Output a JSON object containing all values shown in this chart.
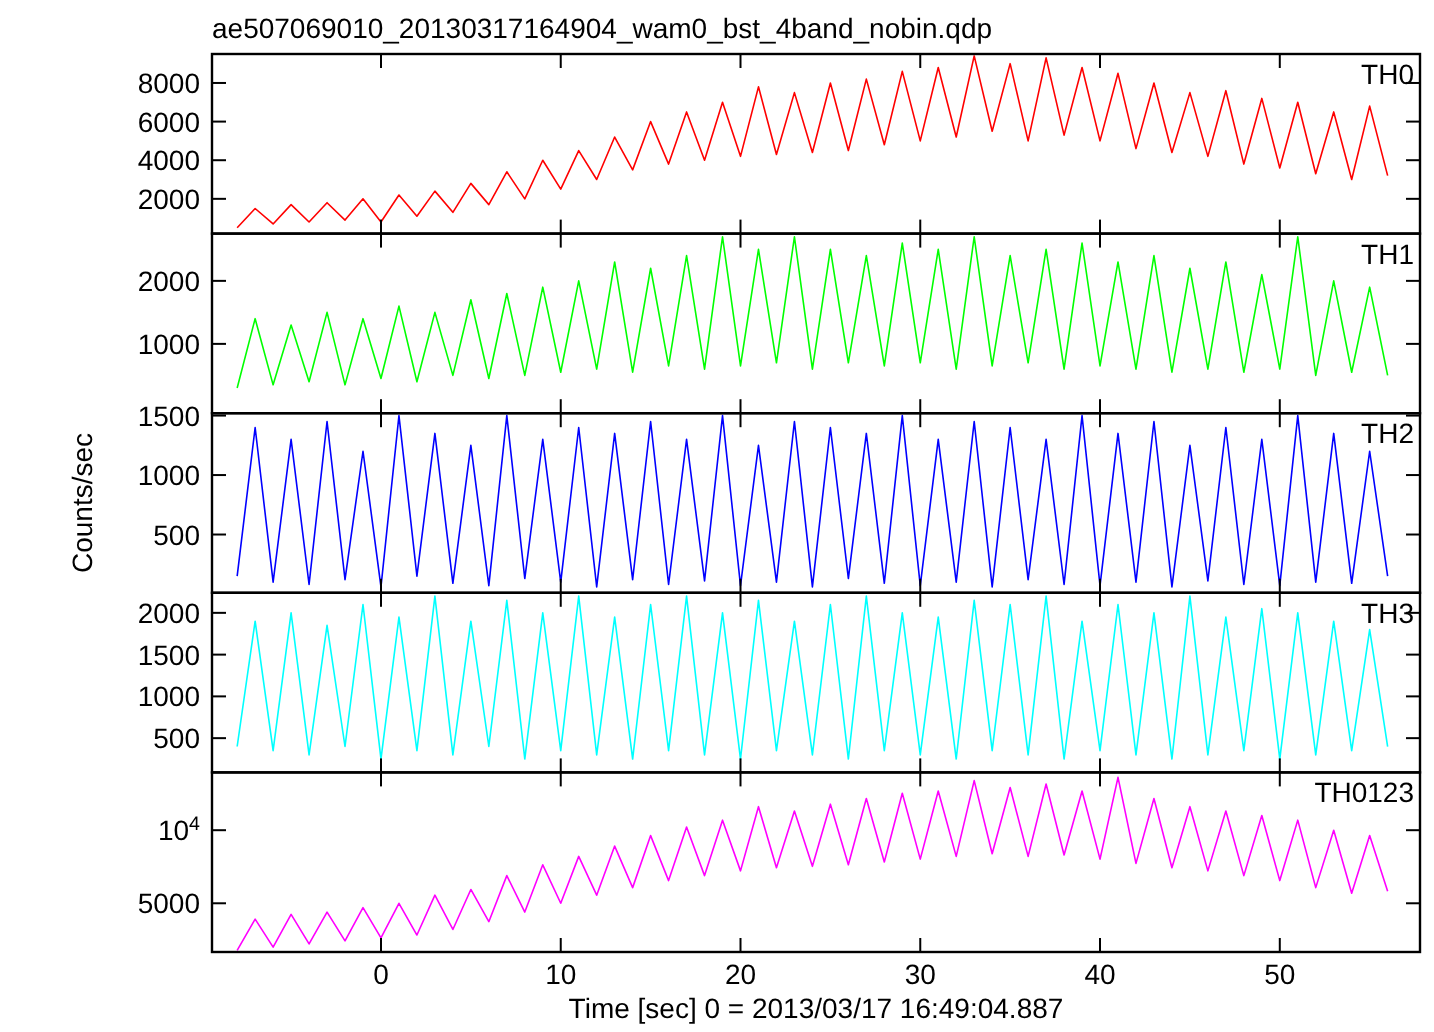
{
  "chart_data": [
    {
      "type": "line",
      "title": "ae507069010_20130317164904_wam0_bst_4band_nobin.qdp",
      "annotations": [
        "TH0"
      ],
      "tick_labels": "y",
      "xlim": [
        -9.4,
        57.8
      ],
      "xticks": [
        0,
        10,
        20,
        30,
        40,
        50
      ],
      "ylim": [
        200,
        9500
      ],
      "yticks": [
        2000,
        4000,
        6000,
        8000
      ],
      "x": [
        -8,
        -7,
        -6,
        -5,
        -4,
        -3,
        -2,
        -1,
        0,
        1,
        2,
        3,
        4,
        5,
        6,
        7,
        8,
        9,
        10,
        11,
        12,
        13,
        14,
        15,
        16,
        17,
        18,
        19,
        20,
        21,
        22,
        23,
        24,
        25,
        26,
        27,
        28,
        29,
        30,
        31,
        32,
        33,
        34,
        35,
        36,
        37,
        38,
        39,
        40,
        41,
        42,
        43,
        44,
        45,
        46,
        47,
        48,
        49,
        50,
        51,
        52,
        53,
        54,
        55,
        56
      ],
      "series": [
        {
          "color": "#ff0000",
          "values": [
            500,
            1500,
            700,
            1700,
            800,
            1800,
            900,
            2000,
            800,
            2200,
            1100,
            2400,
            1300,
            2800,
            1700,
            3400,
            2000,
            4000,
            2500,
            4500,
            3000,
            5200,
            3500,
            6000,
            3800,
            6500,
            4000,
            7000,
            4200,
            7800,
            4300,
            7500,
            4400,
            8000,
            4500,
            8200,
            4800,
            8600,
            5000,
            8800,
            5200,
            9400,
            5500,
            9000,
            5000,
            9300,
            5300,
            8800,
            5000,
            8500,
            4600,
            8000,
            4400,
            7500,
            4200,
            7600,
            3800,
            7200,
            3600,
            7000,
            3300,
            6500,
            3000,
            6800,
            3200
          ]
        }
      ]
    },
    {
      "type": "line",
      "annotations": [
        "TH1"
      ],
      "tick_labels": "y",
      "xlim": [
        -9.4,
        57.8
      ],
      "xticks": [
        0,
        10,
        20,
        30,
        40,
        50
      ],
      "ylim": [
        -100,
        2750
      ],
      "yticks": [
        1000,
        2000
      ],
      "x": [
        -8,
        -7,
        -6,
        -5,
        -4,
        -3,
        -2,
        -1,
        0,
        1,
        2,
        3,
        4,
        5,
        6,
        7,
        8,
        9,
        10,
        11,
        12,
        13,
        14,
        15,
        16,
        17,
        18,
        19,
        20,
        21,
        22,
        23,
        24,
        25,
        26,
        27,
        28,
        29,
        30,
        31,
        32,
        33,
        34,
        35,
        36,
        37,
        38,
        39,
        40,
        41,
        42,
        43,
        44,
        45,
        46,
        47,
        48,
        49,
        50,
        51,
        52,
        53,
        54,
        55,
        56
      ],
      "series": [
        {
          "color": "#00ff00",
          "values": [
            300,
            1400,
            350,
            1300,
            400,
            1500,
            350,
            1400,
            450,
            1600,
            400,
            1500,
            500,
            1700,
            450,
            1800,
            500,
            1900,
            550,
            2000,
            600,
            2300,
            550,
            2200,
            650,
            2400,
            600,
            2700,
            650,
            2500,
            700,
            2700,
            600,
            2500,
            700,
            2400,
            650,
            2600,
            700,
            2500,
            600,
            2700,
            650,
            2400,
            700,
            2500,
            600,
            2600,
            650,
            2300,
            600,
            2400,
            550,
            2200,
            600,
            2300,
            550,
            2100,
            600,
            2700,
            500,
            2000,
            550,
            1900,
            500
          ]
        }
      ]
    },
    {
      "type": "line",
      "annotations": [
        "TH2"
      ],
      "ylabel": "Counts/sec",
      "tick_labels": "y",
      "xlim": [
        -9.4,
        57.8
      ],
      "xticks": [
        0,
        10,
        20,
        30,
        40,
        50
      ],
      "ylim": [
        10,
        1520
      ],
      "yticks": [
        500,
        1000,
        1500
      ],
      "x": [
        -8,
        -7,
        -6,
        -5,
        -4,
        -3,
        -2,
        -1,
        0,
        1,
        2,
        3,
        4,
        5,
        6,
        7,
        8,
        9,
        10,
        11,
        12,
        13,
        14,
        15,
        16,
        17,
        18,
        19,
        20,
        21,
        22,
        23,
        24,
        25,
        26,
        27,
        28,
        29,
        30,
        31,
        32,
        33,
        34,
        35,
        36,
        37,
        38,
        39,
        40,
        41,
        42,
        43,
        44,
        45,
        46,
        47,
        48,
        49,
        50,
        51,
        52,
        53,
        54,
        55,
        56
      ],
      "series": [
        {
          "color": "#0000ff",
          "values": [
            150,
            1400,
            100,
            1300,
            80,
            1450,
            120,
            1200,
            60,
            1500,
            150,
            1350,
            90,
            1250,
            70,
            1500,
            130,
            1300,
            100,
            1400,
            60,
            1350,
            120,
            1450,
            80,
            1300,
            110,
            1500,
            70,
            1250,
            100,
            1450,
            60,
            1400,
            130,
            1350,
            90,
            1500,
            70,
            1300,
            100,
            1450,
            60,
            1400,
            120,
            1300,
            80,
            1500,
            70,
            1350,
            100,
            1450,
            60,
            1250,
            110,
            1400,
            80,
            1300,
            70,
            1500,
            100,
            1350,
            90,
            1200,
            150
          ]
        }
      ]
    },
    {
      "type": "line",
      "annotations": [
        "TH3"
      ],
      "tick_labels": "y",
      "xlim": [
        -9.4,
        57.8
      ],
      "xticks": [
        0,
        10,
        20,
        30,
        40,
        50
      ],
      "ylim": [
        90,
        2240
      ],
      "yticks": [
        500,
        1000,
        1500,
        2000
      ],
      "x": [
        -8,
        -7,
        -6,
        -5,
        -4,
        -3,
        -2,
        -1,
        0,
        1,
        2,
        3,
        4,
        5,
        6,
        7,
        8,
        9,
        10,
        11,
        12,
        13,
        14,
        15,
        16,
        17,
        18,
        19,
        20,
        21,
        22,
        23,
        24,
        25,
        26,
        27,
        28,
        29,
        30,
        31,
        32,
        33,
        34,
        35,
        36,
        37,
        38,
        39,
        40,
        41,
        42,
        43,
        44,
        45,
        46,
        47,
        48,
        49,
        50,
        51,
        52,
        53,
        54,
        55,
        56
      ],
      "series": [
        {
          "color": "#00ffff",
          "values": [
            400,
            1900,
            350,
            2000,
            300,
            1850,
            400,
            2100,
            250,
            1950,
            350,
            2200,
            300,
            1900,
            400,
            2150,
            250,
            2000,
            350,
            2200,
            300,
            1950,
            250,
            2100,
            350,
            2200,
            300,
            2000,
            250,
            2150,
            350,
            1900,
            300,
            2100,
            250,
            2200,
            350,
            2000,
            300,
            1950,
            250,
            2150,
            350,
            2100,
            300,
            2200,
            250,
            1900,
            350,
            2100,
            300,
            2000,
            250,
            2200,
            300,
            1950,
            350,
            2050,
            250,
            2000,
            300,
            1900,
            350,
            1800,
            400
          ]
        }
      ]
    },
    {
      "type": "line",
      "annotations": [
        "TH0123"
      ],
      "xlabel": "Time [sec] 0 = 2013/03/17 16:49:04.887",
      "log": "y",
      "xlim": [
        -9.4,
        57.8
      ],
      "xticks": [
        0,
        10,
        20,
        30,
        40,
        50
      ],
      "ylim": [
        3150,
        17300
      ],
      "yticks": [
        5000,
        {
          "value": 10000,
          "label": "10$^{4}$"
        }
      ],
      "x": [
        -8,
        -7,
        -6,
        -5,
        -4,
        -3,
        -2,
        -1,
        0,
        1,
        2,
        3,
        4,
        5,
        6,
        7,
        8,
        9,
        10,
        11,
        12,
        13,
        14,
        15,
        16,
        17,
        18,
        19,
        20,
        21,
        22,
        23,
        24,
        25,
        26,
        27,
        28,
        29,
        30,
        31,
        32,
        33,
        34,
        35,
        36,
        37,
        38,
        39,
        40,
        41,
        42,
        43,
        44,
        45,
        46,
        47,
        48,
        49,
        50,
        51,
        52,
        53,
        54,
        55,
        56
      ],
      "series": [
        {
          "color": "#ff00ff",
          "values": [
            3200,
            4300,
            3300,
            4500,
            3400,
            4600,
            3500,
            4800,
            3600,
            5000,
            3700,
            5400,
            3900,
            5700,
            4200,
            6500,
            4600,
            7200,
            5000,
            7800,
            5400,
            8600,
            5800,
            9500,
            6200,
            10300,
            6500,
            11000,
            6800,
            12500,
            7000,
            12000,
            7100,
            12800,
            7200,
            13500,
            7400,
            14200,
            7600,
            14500,
            7800,
            16000,
            8000,
            15000,
            7800,
            15500,
            7900,
            14500,
            7600,
            16500,
            7300,
            13500,
            7000,
            12500,
            6800,
            12000,
            6500,
            11500,
            6200,
            11000,
            5800,
            10000,
            5500,
            9500,
            5600
          ]
        }
      ]
    }
  ]
}
